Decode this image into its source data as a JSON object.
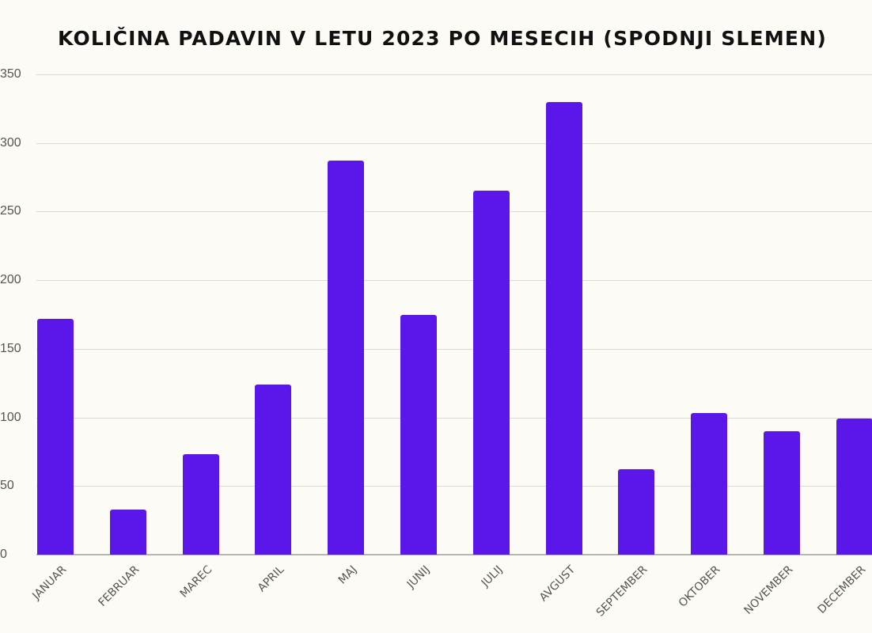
{
  "title": "KOLIČINA PADAVIN V LETU 2023 PO MESECIH (SPODNJI SLEMEN)",
  "colors": {
    "bar": "#5b16ea",
    "background": "#fdfbf6",
    "grid": "#dcd9d4"
  },
  "y_ticks": [
    "0",
    "50",
    "100",
    "150",
    "200",
    "250",
    "300",
    "350"
  ],
  "x_labels": [
    "JANUAR",
    "FEBRUAR",
    "MAREC",
    "APRIL",
    "MAJ",
    "JUNIJ",
    "JULIJ",
    "AVGUST",
    "SEPTEMBER",
    "OKTOBER",
    "NOVEMBER",
    "DECEMBER"
  ],
  "chart_data": {
    "type": "bar",
    "title": "KOLIČINA PADAVIN V LETU 2023 PO MESECIH (SPODNJI SLEMEN)",
    "categories": [
      "JANUAR",
      "FEBRUAR",
      "MAREC",
      "APRIL",
      "MAJ",
      "JUNIJ",
      "JULIJ",
      "AVGUST",
      "SEPTEMBER",
      "OKTOBER",
      "NOVEMBER",
      "DECEMBER"
    ],
    "values": [
      172,
      33,
      73,
      124,
      287,
      175,
      265,
      330,
      62,
      103,
      90,
      99
    ],
    "xlabel": "",
    "ylabel": "",
    "ylim": [
      0,
      350
    ],
    "yticks": [
      0,
      50,
      100,
      150,
      200,
      250,
      300,
      350
    ],
    "grid": true,
    "legend": null
  }
}
